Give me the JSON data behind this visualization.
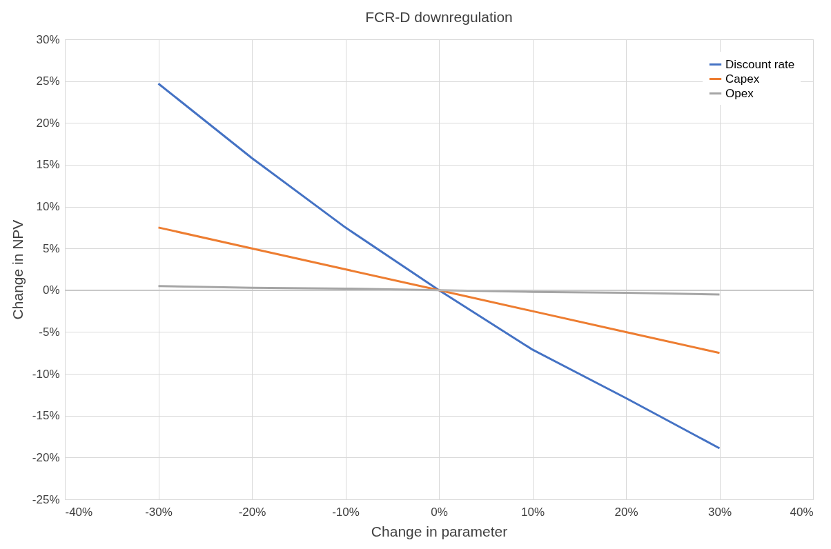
{
  "chart_data": {
    "type": "line",
    "title": "FCR-D downregulation",
    "xlabel": "Change in parameter",
    "ylabel": "Change in NPV",
    "x": [
      -30,
      -20,
      -10,
      0,
      10,
      20,
      30
    ],
    "series": [
      {
        "name": "Discount rate",
        "color": "#4472c4",
        "values": [
          24.7,
          15.8,
          7.5,
          0,
          -7.1,
          -12.9,
          -18.9
        ]
      },
      {
        "name": "Capex",
        "color": "#ed7d31",
        "values": [
          7.5,
          5.0,
          2.5,
          0,
          -2.5,
          -5.0,
          -7.5
        ]
      },
      {
        "name": "Opex",
        "color": "#a5a5a5",
        "values": [
          0.5,
          0.3,
          0.2,
          0,
          -0.2,
          -0.3,
          -0.5
        ]
      }
    ],
    "xlim": [
      -40,
      40
    ],
    "xticks": [
      {
        "value": -40,
        "label": "-40%"
      },
      {
        "value": -30,
        "label": "-30%"
      },
      {
        "value": -20,
        "label": "-20%"
      },
      {
        "value": -10,
        "label": "-10%"
      },
      {
        "value": 0,
        "label": "0%"
      },
      {
        "value": 10,
        "label": "10%"
      },
      {
        "value": 20,
        "label": "20%"
      },
      {
        "value": 30,
        "label": "30%"
      },
      {
        "value": 40,
        "label": "40%"
      }
    ],
    "ylim": [
      -25,
      30
    ],
    "yticks": [
      {
        "value": -25,
        "label": "-25%"
      },
      {
        "value": -20,
        "label": "-20%"
      },
      {
        "value": -15,
        "label": "-15%"
      },
      {
        "value": -10,
        "label": "-10%"
      },
      {
        "value": -5,
        "label": "-5%"
      },
      {
        "value": 0,
        "label": "0%"
      },
      {
        "value": 5,
        "label": "5%"
      },
      {
        "value": 10,
        "label": "10%"
      },
      {
        "value": 15,
        "label": "15%"
      },
      {
        "value": 20,
        "label": "20%"
      },
      {
        "value": 25,
        "label": "25%"
      },
      {
        "value": 30,
        "label": "30%"
      }
    ],
    "grid": true,
    "legend": "top right",
    "marker": "none",
    "line_style": "solid"
  }
}
